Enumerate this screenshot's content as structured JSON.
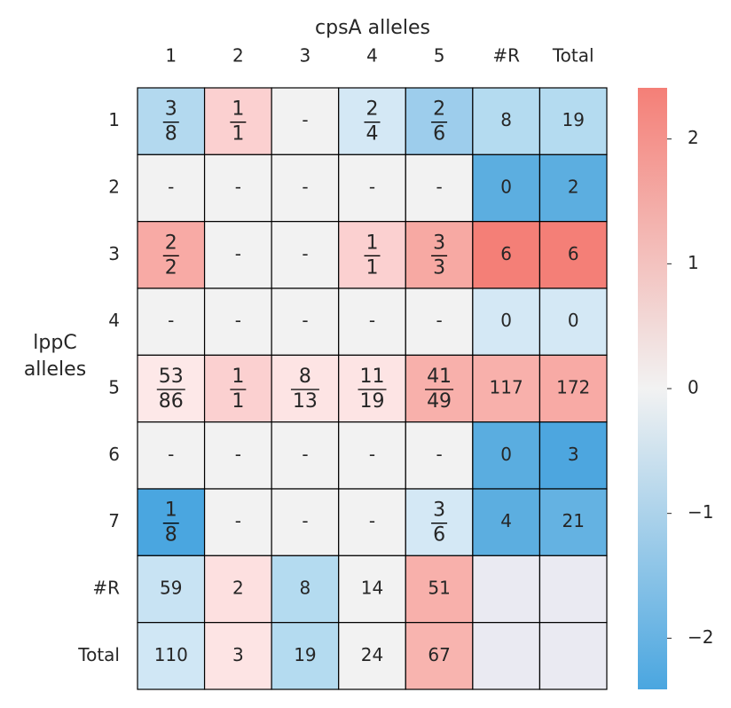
{
  "chart_data": {
    "type": "heatmap",
    "title": "cpsA alleles",
    "ylabel": "lppC alleles",
    "columns": [
      "1",
      "2",
      "3",
      "4",
      "5",
      "#R",
      "Total"
    ],
    "rows": [
      "1",
      "2",
      "3",
      "4",
      "5",
      "6",
      "7",
      "#R",
      "Total"
    ],
    "cells": [
      [
        {
          "num": 3,
          "den": 8
        },
        {
          "num": 1,
          "den": 1
        },
        "-",
        {
          "num": 2,
          "den": 4
        },
        {
          "num": 2,
          "den": 6
        },
        8,
        19
      ],
      [
        "-",
        "-",
        "-",
        "-",
        "-",
        0,
        2
      ],
      [
        {
          "num": 2,
          "den": 2
        },
        "-",
        "-",
        {
          "num": 1,
          "den": 1
        },
        {
          "num": 3,
          "den": 3
        },
        6,
        6
      ],
      [
        "-",
        "-",
        "-",
        "-",
        "-",
        0,
        0
      ],
      [
        {
          "num": 53,
          "den": 86
        },
        {
          "num": 1,
          "den": 1
        },
        {
          "num": 8,
          "den": 13
        },
        {
          "num": 11,
          "den": 19
        },
        {
          "num": 41,
          "den": 49
        },
        117,
        172
      ],
      [
        "-",
        "-",
        "-",
        "-",
        "-",
        0,
        3
      ],
      [
        {
          "num": 1,
          "den": 8
        },
        "-",
        "-",
        "-",
        {
          "num": 3,
          "den": 6
        },
        4,
        21
      ],
      [
        59,
        2,
        8,
        14,
        51,
        null,
        null
      ],
      [
        110,
        3,
        19,
        24,
        67,
        null,
        null
      ]
    ],
    "colors": [
      [
        "#b3d9ef",
        "#fbd0d0",
        "#f2f2f2",
        "#d4e8f5",
        "#9dcdec",
        "#b4dbf0",
        "#b4dbf0"
      ],
      [
        "#f2f2f2",
        "#f2f2f2",
        "#f2f2f2",
        "#f2f2f2",
        "#f2f2f2",
        "#5caee0",
        "#5caee0"
      ],
      [
        "#f8aaa5",
        "#f2f2f2",
        "#f2f2f2",
        "#fbd0d0",
        "#f7a9a3",
        "#f47f77",
        "#f47f77"
      ],
      [
        "#f2f2f2",
        "#f2f2f2",
        "#f2f2f2",
        "#f2f2f2",
        "#f2f2f2",
        "#d4e8f5",
        "#d4e8f5"
      ],
      [
        "#fde8e8",
        "#fbd0d0",
        "#fde4e4",
        "#fde4e4",
        "#f8b0ab",
        "#f8b0ab",
        "#f8aaa5"
      ],
      [
        "#f2f2f2",
        "#f2f2f2",
        "#f2f2f2",
        "#f2f2f2",
        "#f2f2f2",
        "#5aade0",
        "#4da6df"
      ],
      [
        "#4aa6e0",
        "#f2f2f2",
        "#f2f2f2",
        "#f2f2f2",
        "#d4e8f5",
        "#5caee0",
        "#64b2e2"
      ],
      [
        "#c8e3f3",
        "#fde0e0",
        "#b4dbf0",
        "#f2f2f2",
        "#f8b0ab",
        "#eaeaf2",
        "#eaeaf2"
      ],
      [
        "#d0e7f5",
        "#fde4e4",
        "#b4dbf0",
        "#f2f2f2",
        "#f8b4af",
        "#eaeaf2",
        "#eaeaf2"
      ]
    ],
    "colorbar_colors": [
      "#4aa6e0",
      "#f2f2f2",
      "#f47f77"
    ],
    "ylim": [
      -2.41,
      2.41
    ],
    "yticks": [
      {
        "value": -2,
        "label": "−2"
      },
      {
        "value": -1,
        "label": "−1"
      },
      0,
      1,
      2
    ]
  }
}
